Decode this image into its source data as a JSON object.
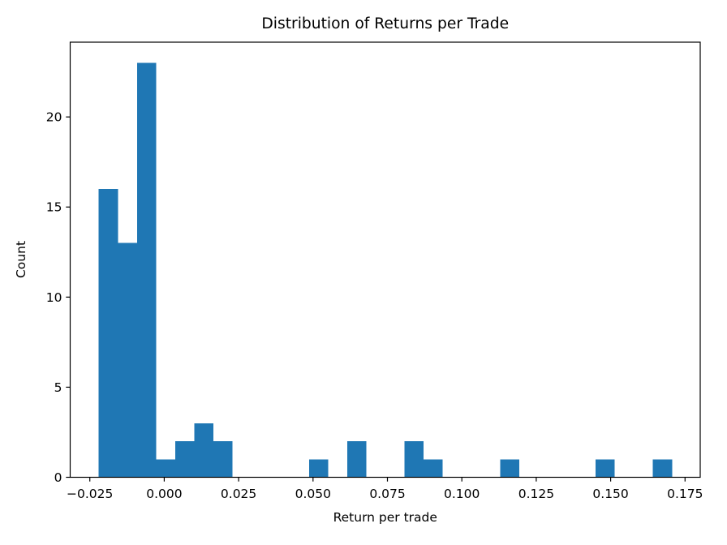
{
  "figure": {
    "background": "#ffffff"
  },
  "chart_data": {
    "type": "bar",
    "subtype": "histogram",
    "title": "Distribution of Returns per Trade",
    "xlabel": "Return per trade",
    "ylabel": "Count",
    "bar_color": "#1f77b4",
    "axis_color": "#000000",
    "text_color": "#000000",
    "grid": false,
    "legend": null,
    "bin_start": -0.022,
    "bin_width": 0.006421,
    "counts": [
      16,
      13,
      23,
      1,
      2,
      3,
      2,
      0,
      0,
      0,
      0,
      1,
      0,
      2,
      0,
      0,
      2,
      1,
      0,
      0,
      0,
      1,
      0,
      0,
      0,
      0,
      1,
      0,
      0,
      1
    ],
    "xlim": [
      -0.0316,
      0.1801
    ],
    "ylim": [
      0,
      24.15
    ],
    "xticks": {
      "values": [
        -0.025,
        0.0,
        0.025,
        0.05,
        0.075,
        0.1,
        0.125,
        0.15,
        0.175
      ],
      "labels": [
        "−0.025",
        "0.000",
        "0.025",
        "0.050",
        "0.075",
        "0.100",
        "0.125",
        "0.150",
        "0.175"
      ]
    },
    "yticks": {
      "values": [
        0,
        5,
        10,
        15,
        20
      ],
      "labels": [
        "0",
        "5",
        "10",
        "15",
        "20"
      ]
    }
  }
}
